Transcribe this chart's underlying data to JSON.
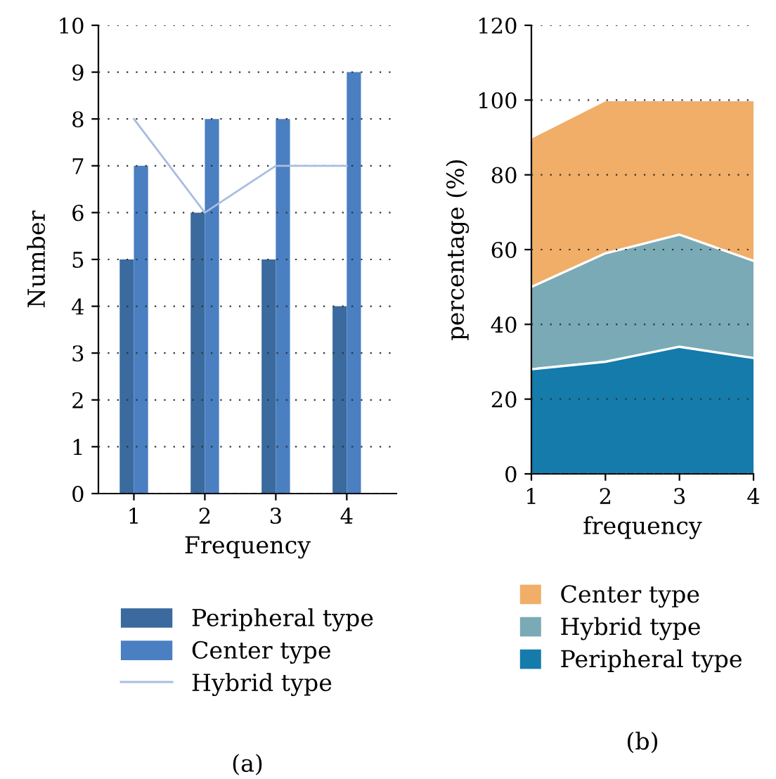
{
  "chart_data": [
    {
      "type": "bar",
      "categories": [
        "1",
        "2",
        "3",
        "4"
      ],
      "xlabel": "Frequency",
      "ylabel": "Number",
      "ylim": [
        0,
        10
      ],
      "yticks": [
        0,
        1,
        2,
        3,
        4,
        5,
        6,
        7,
        8,
        9,
        10
      ],
      "grid": "y",
      "legend": "bottom",
      "annotations": [
        "(a)"
      ],
      "series": [
        {
          "name": "Peripheral type",
          "color": "#3a6a9e",
          "values": [
            5,
            6,
            5,
            4
          ]
        },
        {
          "name": "Center type",
          "color": "#4a7fc1",
          "values": [
            7,
            8,
            8,
            9
          ]
        },
        {
          "name": "Hybrid type",
          "type": "line",
          "color": "#a9bde0",
          "values": [
            8,
            6,
            7,
            7
          ]
        }
      ]
    },
    {
      "type": "area",
      "stacked": true,
      "x": [
        1,
        2,
        3,
        4
      ],
      "xlabel": "frequency",
      "ylabel": "percentage (%)",
      "xlim": [
        1,
        4
      ],
      "xticks": [
        1,
        2,
        3,
        4
      ],
      "ylim": [
        0,
        120
      ],
      "yticks": [
        0,
        20,
        40,
        60,
        80,
        100,
        120
      ],
      "grid": "y",
      "legend": "bottom",
      "annotations": [
        "(b)"
      ],
      "series": [
        {
          "name": "Peripheral type",
          "color": "#157bab",
          "values": [
            28,
            30,
            34,
            31
          ]
        },
        {
          "name": "Hybrid type",
          "color": "#7aaab6",
          "values": [
            22,
            29,
            30,
            26
          ]
        },
        {
          "name": "Center type",
          "color": "#f0ae69",
          "values": [
            40,
            41,
            36,
            43
          ]
        }
      ]
    }
  ]
}
